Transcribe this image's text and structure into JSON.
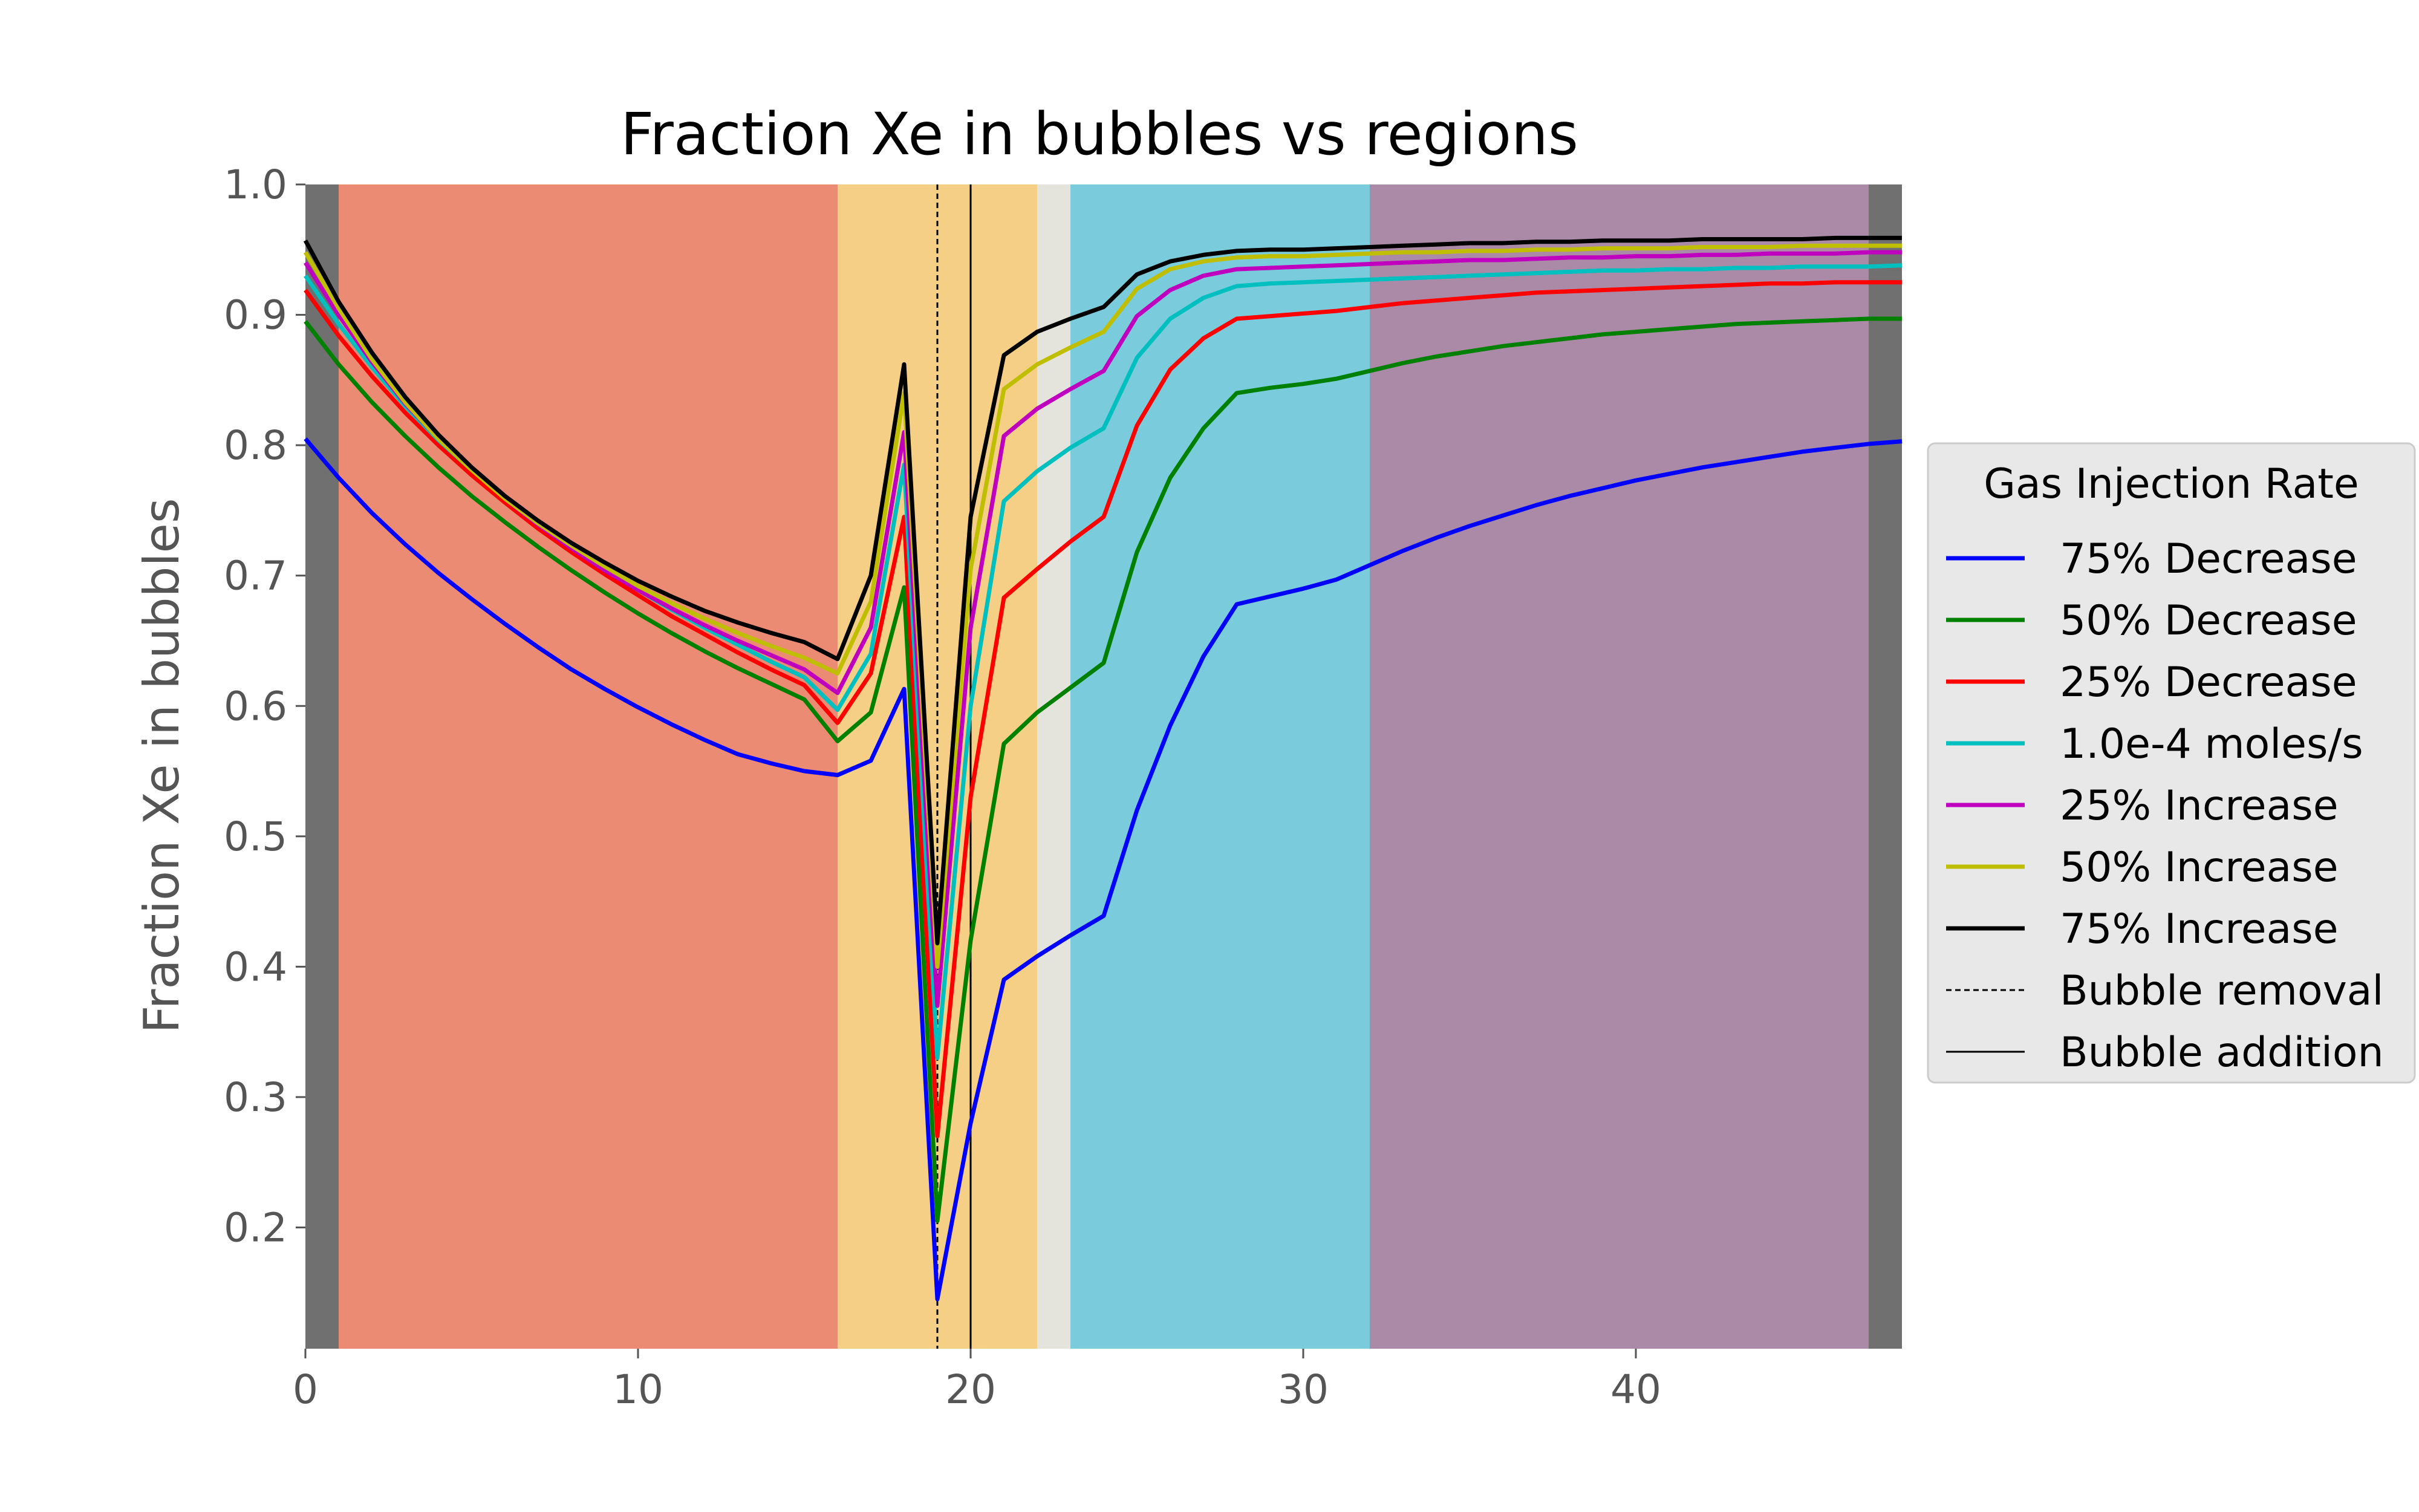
{
  "chart_data": {
    "type": "line",
    "title": "Fraction Xe in bubbles vs regions",
    "xlabel": "",
    "ylabel": "Fraction Xe in bubbles",
    "xlim": [
      0,
      48
    ],
    "ylim": [
      0.107,
      1.0
    ],
    "xticks": [
      0,
      10,
      20,
      30,
      40
    ],
    "xtick_labels": [
      "0",
      "10",
      "20",
      "30",
      "40"
    ],
    "yticks": [
      0.2,
      0.3,
      0.4,
      0.5,
      0.6,
      0.7,
      0.8,
      0.9,
      1.0
    ],
    "ytick_labels": [
      "0.2",
      "0.3",
      "0.4",
      "0.5",
      "0.6",
      "0.7",
      "0.8",
      "0.9",
      "1.0"
    ],
    "grid": false,
    "legend_position": "center-right outside",
    "legend_title": "Gas Injection Rate",
    "background_regions": [
      {
        "x0": 0,
        "x1": 1,
        "color": "#707070"
      },
      {
        "x0": 1,
        "x1": 16,
        "color": "#ec8b73"
      },
      {
        "x0": 16,
        "x1": 22,
        "color": "#f6cf87"
      },
      {
        "x0": 22,
        "x1": 23,
        "color": "#e5e4dc"
      },
      {
        "x0": 23,
        "x1": 32,
        "color": "#7accdc"
      },
      {
        "x0": 32,
        "x1": 47,
        "color": "#aa8aa6"
      },
      {
        "x0": 47,
        "x1": 48,
        "color": "#707070"
      }
    ],
    "vlines": [
      {
        "name": "Bubble removal",
        "x": 19,
        "style": "dashed",
        "color": "#000000"
      },
      {
        "name": "Bubble addition",
        "x": 20,
        "style": "solid",
        "color": "#000000"
      }
    ],
    "x": [
      0,
      1,
      2,
      3,
      4,
      5,
      6,
      7,
      8,
      9,
      10,
      11,
      12,
      13,
      14,
      15,
      16,
      17,
      18,
      19,
      20,
      21,
      22,
      23,
      24,
      25,
      26,
      27,
      28,
      29,
      30,
      31,
      32,
      33,
      34,
      35,
      36,
      37,
      38,
      39,
      40,
      41,
      42,
      43,
      44,
      45,
      46,
      47,
      48
    ],
    "series": [
      {
        "name": "75% Decrease",
        "color": "#0000ff",
        "values": [
          0.805,
          0.775,
          0.748,
          0.724,
          0.702,
          0.682,
          0.663,
          0.645,
          0.628,
          0.613,
          0.599,
          0.586,
          0.574,
          0.563,
          0.556,
          0.55,
          0.547,
          0.558,
          0.613,
          0.145,
          0.28,
          0.39,
          0.408,
          0.424,
          0.439,
          0.52,
          0.585,
          0.638,
          0.678,
          0.684,
          0.69,
          0.697,
          0.708,
          0.719,
          0.729,
          0.738,
          0.746,
          0.754,
          0.761,
          0.767,
          0.773,
          0.778,
          0.783,
          0.787,
          0.791,
          0.795,
          0.798,
          0.801,
          0.803
        ]
      },
      {
        "name": "50% Decrease",
        "color": "#008000",
        "values": [
          0.895,
          0.862,
          0.833,
          0.807,
          0.783,
          0.761,
          0.741,
          0.722,
          0.704,
          0.687,
          0.671,
          0.656,
          0.642,
          0.629,
          0.617,
          0.605,
          0.573,
          0.595,
          0.691,
          0.205,
          0.42,
          0.571,
          0.595,
          0.614,
          0.633,
          0.718,
          0.775,
          0.813,
          0.84,
          0.844,
          0.847,
          0.851,
          0.857,
          0.863,
          0.868,
          0.872,
          0.876,
          0.879,
          0.882,
          0.885,
          0.887,
          0.889,
          0.891,
          0.893,
          0.894,
          0.895,
          0.896,
          0.897,
          0.897
        ]
      },
      {
        "name": "25% Decrease",
        "color": "#ff0000",
        "values": [
          0.919,
          0.884,
          0.853,
          0.825,
          0.8,
          0.777,
          0.756,
          0.736,
          0.718,
          0.701,
          0.685,
          0.669,
          0.655,
          0.641,
          0.628,
          0.616,
          0.587,
          0.625,
          0.745,
          0.27,
          0.53,
          0.683,
          0.705,
          0.726,
          0.745,
          0.815,
          0.858,
          0.882,
          0.897,
          0.899,
          0.901,
          0.903,
          0.906,
          0.909,
          0.911,
          0.913,
          0.915,
          0.917,
          0.918,
          0.919,
          0.92,
          0.921,
          0.922,
          0.923,
          0.924,
          0.924,
          0.925,
          0.925,
          0.925
        ]
      },
      {
        "name": "1.0e-4 moles/s",
        "color": "#00bfbf",
        "values": [
          0.93,
          0.893,
          0.86,
          0.83,
          0.804,
          0.781,
          0.76,
          0.74,
          0.722,
          0.705,
          0.689,
          0.674,
          0.66,
          0.647,
          0.634,
          0.622,
          0.597,
          0.64,
          0.785,
          0.33,
          0.6,
          0.757,
          0.78,
          0.798,
          0.813,
          0.867,
          0.897,
          0.913,
          0.922,
          0.924,
          0.925,
          0.926,
          0.927,
          0.928,
          0.929,
          0.93,
          0.931,
          0.932,
          0.933,
          0.934,
          0.934,
          0.935,
          0.935,
          0.936,
          0.936,
          0.937,
          0.937,
          0.937,
          0.938
        ]
      },
      {
        "name": "25% Increase",
        "color": "#bf00bf",
        "values": [
          0.94,
          0.9,
          0.864,
          0.832,
          0.805,
          0.781,
          0.759,
          0.739,
          0.721,
          0.704,
          0.689,
          0.675,
          0.662,
          0.65,
          0.639,
          0.628,
          0.61,
          0.66,
          0.81,
          0.37,
          0.66,
          0.807,
          0.828,
          0.843,
          0.857,
          0.899,
          0.919,
          0.93,
          0.935,
          0.936,
          0.937,
          0.938,
          0.939,
          0.94,
          0.941,
          0.942,
          0.942,
          0.943,
          0.944,
          0.944,
          0.945,
          0.945,
          0.946,
          0.946,
          0.947,
          0.947,
          0.947,
          0.948,
          0.948
        ]
      },
      {
        "name": "50% Increase",
        "color": "#bfbf00",
        "values": [
          0.948,
          0.905,
          0.866,
          0.833,
          0.805,
          0.781,
          0.759,
          0.74,
          0.723,
          0.707,
          0.692,
          0.679,
          0.667,
          0.656,
          0.646,
          0.637,
          0.625,
          0.68,
          0.84,
          0.4,
          0.705,
          0.843,
          0.862,
          0.875,
          0.887,
          0.92,
          0.935,
          0.941,
          0.944,
          0.945,
          0.945,
          0.946,
          0.947,
          0.948,
          0.948,
          0.949,
          0.949,
          0.95,
          0.95,
          0.951,
          0.951,
          0.951,
          0.952,
          0.952,
          0.952,
          0.953,
          0.953,
          0.953,
          0.953
        ]
      },
      {
        "name": "75% Increase",
        "color": "#000000",
        "values": [
          0.957,
          0.91,
          0.871,
          0.837,
          0.808,
          0.783,
          0.761,
          0.742,
          0.725,
          0.71,
          0.696,
          0.684,
          0.673,
          0.664,
          0.656,
          0.649,
          0.636,
          0.7,
          0.862,
          0.418,
          0.745,
          0.869,
          0.887,
          0.897,
          0.906,
          0.931,
          0.941,
          0.946,
          0.949,
          0.95,
          0.95,
          0.951,
          0.952,
          0.953,
          0.954,
          0.955,
          0.955,
          0.956,
          0.956,
          0.957,
          0.957,
          0.957,
          0.958,
          0.958,
          0.958,
          0.958,
          0.959,
          0.959,
          0.959
        ]
      }
    ]
  }
}
